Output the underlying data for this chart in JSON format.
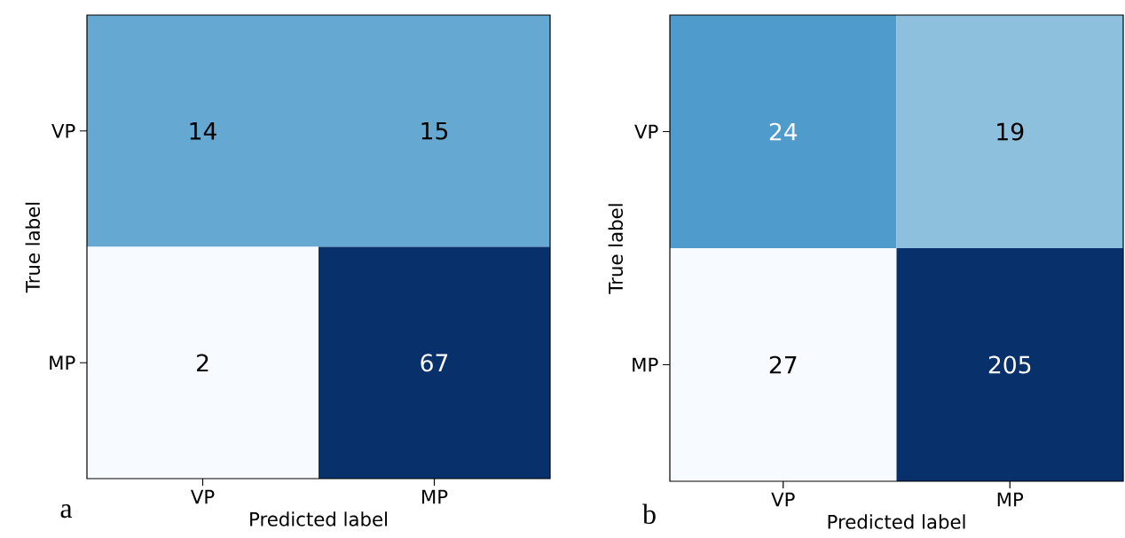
{
  "chart_data": [
    {
      "type": "heatmap",
      "xlabel": "Predicted label",
      "ylabel": "True label",
      "categories": [
        "VP",
        "MP"
      ],
      "y_categories": [
        "VP",
        "MP"
      ],
      "cells": [
        [
          14,
          15
        ],
        [
          2,
          67
        ]
      ],
      "colors": [
        [
          "#65a9d3",
          "#65a9d3"
        ],
        [
          "#f7fbff",
          "#08306b"
        ]
      ],
      "data_labels": true,
      "annotations": [
        "a"
      ]
    },
    {
      "type": "heatmap",
      "xlabel": "Predicted label",
      "ylabel": "True label",
      "categories": [
        "VP",
        "MP"
      ],
      "y_categories": [
        "VP",
        "MP"
      ],
      "cells": [
        [
          24,
          19
        ],
        [
          27,
          205
        ]
      ],
      "colors": [
        [
          "#4f9bcb",
          "#8cc0dd"
        ],
        [
          "#f7fbff",
          "#08306b"
        ]
      ],
      "data_labels": true,
      "annotations": [
        "b"
      ]
    }
  ]
}
